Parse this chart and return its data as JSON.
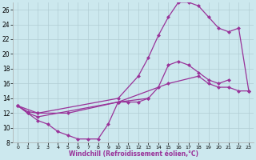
{
  "xlabel": "Windchill (Refroidissement éolien,°C)",
  "background_color": "#cce8ee",
  "grid_color": "#b0ccd4",
  "line_color": "#993399",
  "marker": "D",
  "markersize": 2.5,
  "linewidth": 0.9,
  "xlim": [
    -0.5,
    23.5
  ],
  "ylim": [
    8,
    27
  ],
  "xticks": [
    0,
    1,
    2,
    3,
    4,
    5,
    6,
    7,
    8,
    9,
    10,
    11,
    12,
    13,
    14,
    15,
    16,
    17,
    18,
    19,
    20,
    21,
    22,
    23
  ],
  "yticks": [
    8,
    10,
    12,
    14,
    16,
    18,
    20,
    22,
    24,
    26
  ],
  "line1_x": [
    0,
    1,
    2,
    3,
    4,
    5,
    6,
    7,
    8,
    9,
    10,
    11,
    12,
    13
  ],
  "line1_y": [
    13,
    12,
    11,
    10.5,
    9.5,
    9,
    8.5,
    8.5,
    8.5,
    10.5,
    13.5,
    13.5,
    13.5,
    14
  ],
  "line2_x": [
    0,
    1,
    2,
    10,
    13,
    14,
    15,
    16,
    17,
    18,
    19,
    20,
    21
  ],
  "line2_y": [
    13,
    12,
    11.5,
    13.5,
    14,
    15.5,
    18.5,
    19,
    18.5,
    17.5,
    16.5,
    16,
    16.5
  ],
  "line3_x": [
    0,
    1,
    2,
    10,
    12,
    13,
    14,
    15,
    16,
    17,
    18,
    19,
    20,
    21,
    22,
    23
  ],
  "line3_y": [
    13,
    12.2,
    12,
    14,
    17,
    19.5,
    22.5,
    25,
    27,
    27,
    26.5,
    25,
    23.5,
    23,
    23.5,
    15
  ],
  "line4_x": [
    0,
    2,
    5,
    10,
    15,
    18,
    19,
    20,
    21,
    22,
    23
  ],
  "line4_y": [
    13,
    12,
    12,
    13.5,
    16,
    17,
    16,
    15.5,
    15.5,
    15,
    15
  ]
}
